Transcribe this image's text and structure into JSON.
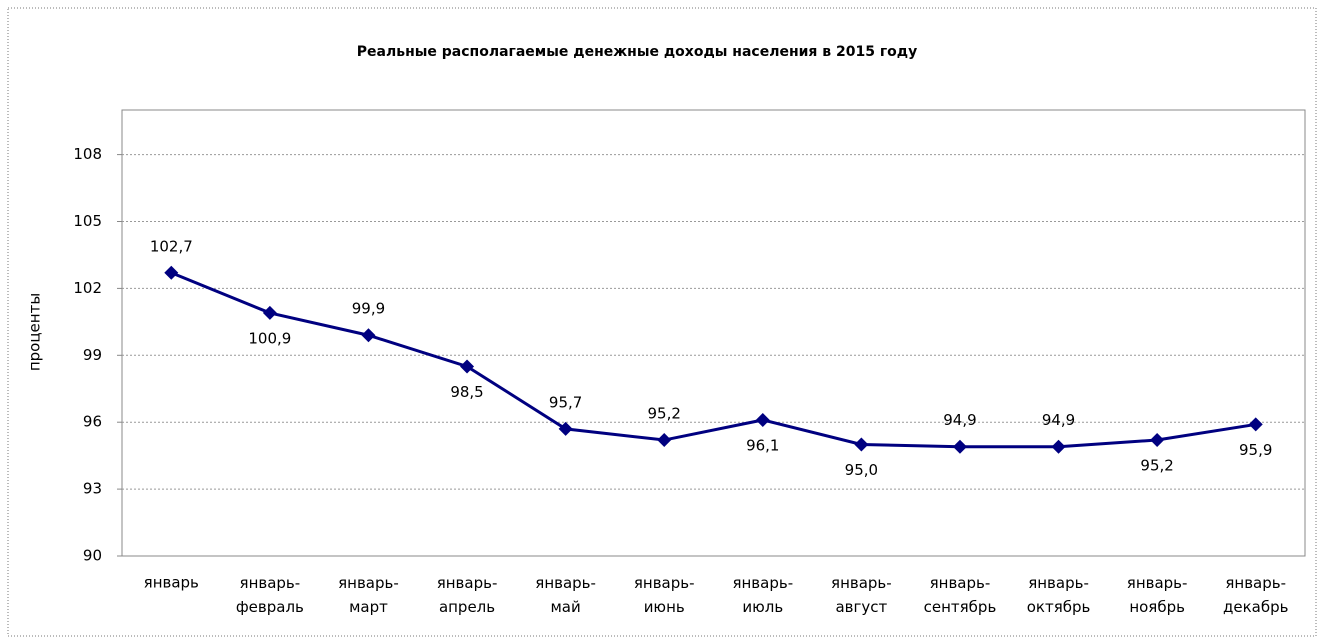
{
  "chart_data": {
    "type": "line",
    "title": "Реальные располагаемые денежные доходы населения в 2015 году",
    "y_label": "проценты",
    "categories": [
      "январь",
      "январь-февраль",
      "январь-март",
      "январь-апрель",
      "январь-май",
      "январь-июнь",
      "январь-июль",
      "январь-август",
      "январь-сентябрь",
      "январь-октябрь",
      "январь-ноябрь",
      "январь-декабрь"
    ],
    "series": [
      {
        "name": "Реальные располагаемые денежные доходы",
        "color": "#000080",
        "values": [
          102.7,
          100.9,
          99.9,
          98.5,
          95.7,
          95.2,
          96.1,
          95.0,
          94.9,
          94.9,
          95.2,
          95.9
        ],
        "value_labels": [
          "102,7",
          "100,9",
          "99,9",
          "98,5",
          "95,7",
          "95,2",
          "96,1",
          "95,0",
          "94,9",
          "94,9",
          "95,2",
          "95,9"
        ]
      }
    ],
    "ylim": [
      90,
      110
    ],
    "yticks": [
      90,
      93,
      96,
      99,
      102,
      105,
      108
    ],
    "grid": true
  }
}
